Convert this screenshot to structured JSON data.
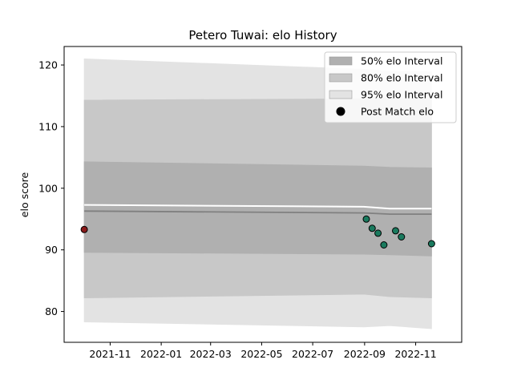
{
  "chart_data": {
    "type": "area",
    "title": "Petero Tuwai: elo History",
    "xlabel": "",
    "ylabel": "elo score",
    "xlim": [
      "2021-09-07",
      "2022-12-26"
    ],
    "ylim": [
      75,
      123
    ],
    "grid": false,
    "legend_position": "top-right",
    "x_ticks": [
      "2021-11",
      "2022-01",
      "2022-03",
      "2022-05",
      "2022-07",
      "2022-09",
      "2022-11"
    ],
    "y_ticks": [
      80,
      90,
      100,
      110,
      120
    ],
    "band_dates": [
      "2021-10-01",
      "2022-08-31",
      "2022-10-01",
      "2022-11-20"
    ],
    "mean": [
      96.3,
      96.0,
      95.8,
      95.8
    ],
    "white_line": [
      97.3,
      97.0,
      96.7,
      96.7
    ],
    "series": [
      {
        "name": "50% elo Interval",
        "color": "#b0b0b0",
        "lower": [
          89.6,
          89.3,
          89.2,
          89.0
        ],
        "upper": [
          104.3,
          103.6,
          103.4,
          103.3
        ]
      },
      {
        "name": "80% elo Interval",
        "color": "#c8c8c8",
        "lower": [
          82.2,
          82.8,
          82.4,
          82.2
        ],
        "upper": [
          114.3,
          114.5,
          114.6,
          114.6
        ]
      },
      {
        "name": "95% elo Interval",
        "color": "#e3e3e3",
        "lower": [
          78.3,
          77.5,
          77.7,
          77.2
        ],
        "upper": [
          121.0,
          119.3,
          119.0,
          118.9
        ]
      }
    ],
    "post_match": {
      "name": "Post Match elo",
      "points": [
        {
          "date": "2021-10-01",
          "value": 93.3,
          "color": "#8b1a1a"
        },
        {
          "date": "2022-09-03",
          "value": 95.0,
          "color": "#1a7a5e"
        },
        {
          "date": "2022-09-10",
          "value": 93.5,
          "color": "#1a7a5e"
        },
        {
          "date": "2022-09-17",
          "value": 92.7,
          "color": "#1a7a5e"
        },
        {
          "date": "2022-09-24",
          "value": 90.8,
          "color": "#1a7a5e"
        },
        {
          "date": "2022-10-08",
          "value": 93.1,
          "color": "#1a7a5e"
        },
        {
          "date": "2022-10-15",
          "value": 92.1,
          "color": "#1a7a5e"
        },
        {
          "date": "2022-11-20",
          "value": 91.0,
          "color": "#1a7a5e"
        }
      ]
    }
  }
}
